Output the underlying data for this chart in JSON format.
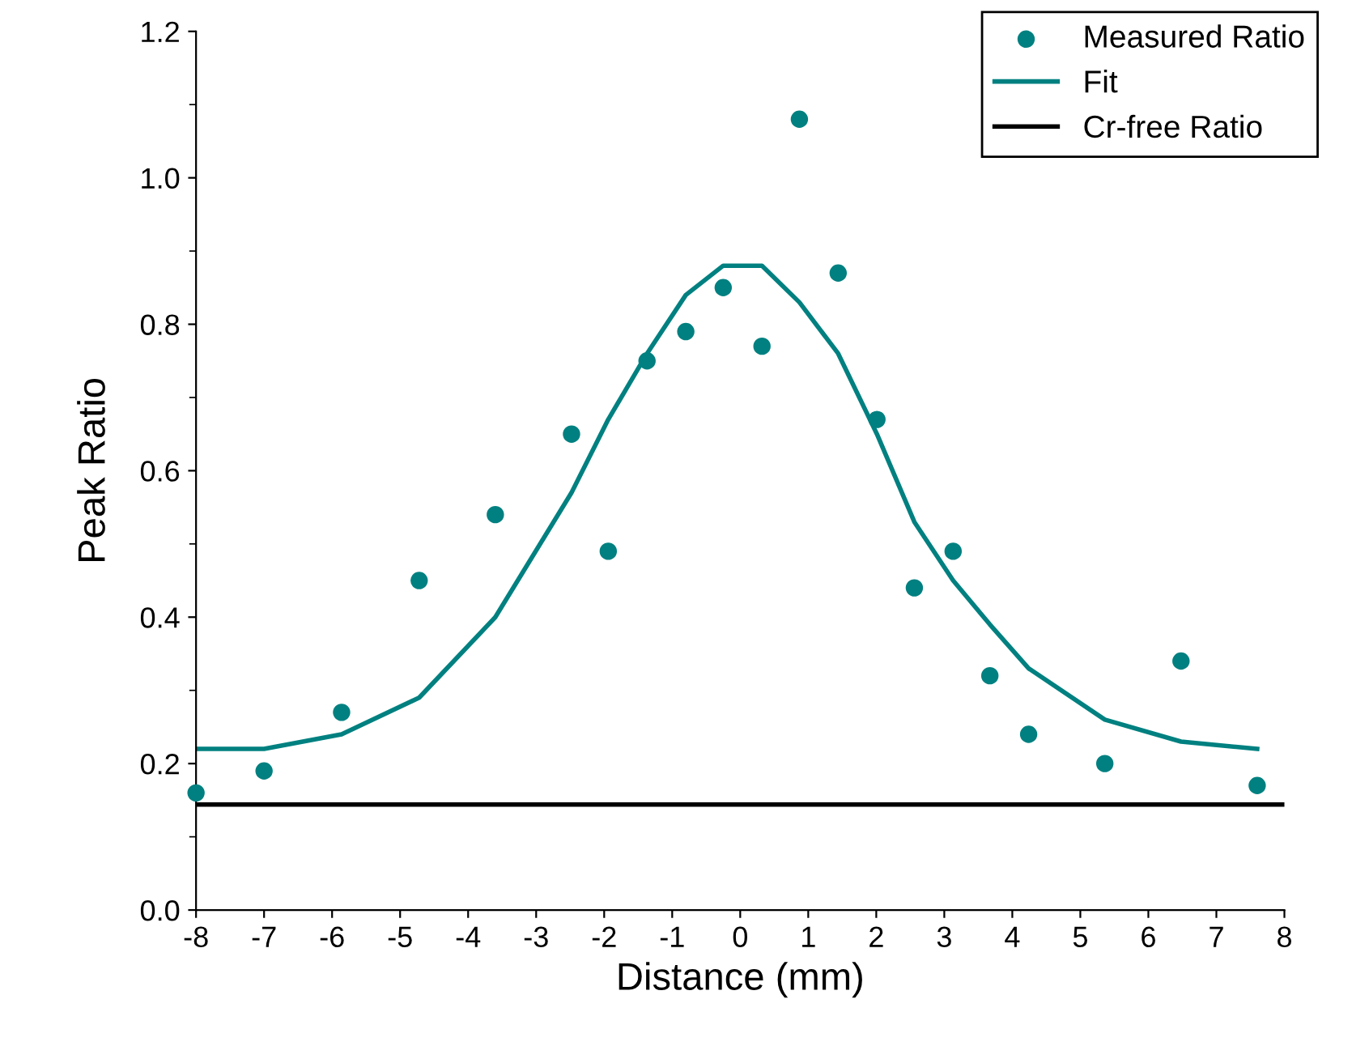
{
  "chart_data": {
    "type": "scatter",
    "xlabel": "Distance (mm)",
    "ylabel": "Peak Ratio",
    "xlim": [
      -8,
      8
    ],
    "xticks": [
      -8,
      -7,
      -6,
      -5,
      -4,
      -3,
      -2,
      -1,
      0,
      1,
      2,
      3,
      4,
      5,
      6,
      7,
      8
    ],
    "ylim": [
      0,
      1.2
    ],
    "yticks": [
      {
        "value": 0,
        "label": "0.0"
      },
      {
        "value": 0.2,
        "label": "0.2"
      },
      {
        "value": 0.4,
        "label": "0.4"
      },
      {
        "value": 0.6,
        "label": "0.6"
      },
      {
        "value": 0.8,
        "label": "0.8"
      },
      {
        "value": 1.0,
        "label": "1.0"
      },
      {
        "value": 1.2,
        "label": "1.2"
      }
    ],
    "grid": false,
    "legend": "top right",
    "series": [
      {
        "name": "Measured Ratio",
        "marker": "circle",
        "color": "#008080",
        "x": [
          -8,
          -7.0,
          -5.86,
          -4.72,
          -3.6,
          -2.48,
          -1.94,
          -1.37,
          -0.8,
          -0.25,
          0.32,
          0.87,
          1.44,
          2.01,
          2.56,
          3.13,
          3.67,
          4.24,
          5.36,
          6.48,
          7.6
        ],
        "values": [
          0.16,
          0.19,
          0.27,
          0.45,
          0.54,
          0.65,
          0.49,
          0.75,
          0.79,
          0.85,
          0.77,
          1.08,
          0.87,
          0.67,
          0.44,
          0.49,
          0.32,
          0.24,
          0.2,
          0.34,
          0.17
        ]
      },
      {
        "name": "Fit",
        "type": "line",
        "line_style": "solid",
        "color": "#008080",
        "x": [
          -8,
          -7.0,
          -5.86,
          -4.72,
          -3.6,
          -2.48,
          -1.94,
          -1.37,
          -0.8,
          -0.25,
          0.32,
          0.87,
          1.44,
          2.01,
          2.56,
          3.13,
          3.67,
          4.24,
          5.36,
          6.48,
          7.6
        ],
        "values": [
          0.22,
          0.22,
          0.24,
          0.29,
          0.4,
          0.57,
          0.67,
          0.76,
          0.84,
          0.88,
          0.88,
          0.83,
          0.76,
          0.65,
          0.53,
          0.45,
          0.39,
          0.33,
          0.26,
          0.23,
          0.22
        ]
      },
      {
        "name": "Cr-free Ratio",
        "type": "line",
        "line_style": "solid",
        "color": "#000000",
        "x": [
          -8,
          8
        ],
        "values": [
          0.144,
          0.144
        ]
      }
    ]
  }
}
